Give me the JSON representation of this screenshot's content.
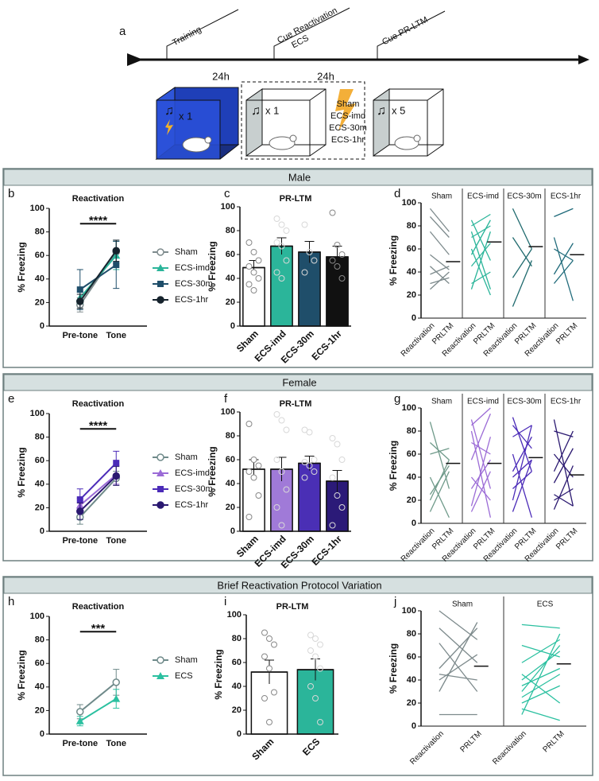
{
  "timeline": {
    "label": "a",
    "events": [
      [
        "Training"
      ],
      [
        "Cue Reactivation",
        "ECS"
      ],
      [
        "Cue PR-LTM"
      ]
    ],
    "intervals": [
      "24h",
      "24h"
    ],
    "cages": [
      {
        "count": "x 1"
      },
      {
        "count": "x 1",
        "conditions": [
          "Sham",
          "ECS-imd",
          "ECS-30m",
          "ECS-1hr"
        ]
      },
      {
        "count": "x 5"
      }
    ]
  },
  "sections": [
    {
      "title": "Male"
    },
    {
      "title": "Female"
    },
    {
      "title": "Brief Reactivation Protocol Variation"
    }
  ],
  "chart_data": [
    {
      "type": "line",
      "label": "b",
      "title": "Reactivation",
      "ylabel": "% Freezing",
      "categories": [
        "Pre-tone",
        "Tone"
      ],
      "ylim": [
        0,
        100
      ],
      "yticks": [
        0,
        20,
        40,
        60,
        80,
        100
      ],
      "annotation": "****",
      "series": [
        {
          "name": "Sham",
          "color": "#7d8a8c",
          "marker": "circle-open",
          "values": [
            18,
            63
          ],
          "errors": [
            6,
            10
          ]
        },
        {
          "name": "ECS-imd",
          "color": "#2bb59a",
          "marker": "triangle",
          "values": [
            24,
            60
          ],
          "errors": [
            5,
            12
          ]
        },
        {
          "name": "ECS-30m",
          "color": "#1f4e6a",
          "marker": "square",
          "values": [
            31,
            52
          ],
          "errors": [
            17,
            20
          ]
        },
        {
          "name": "ECS-1hr",
          "color": "#16232d",
          "marker": "circle",
          "values": [
            21,
            64
          ],
          "errors": [
            6,
            9
          ]
        }
      ]
    },
    {
      "type": "bar",
      "label": "c",
      "title": "PR-LTM",
      "ylabel": "% Freezing",
      "categories": [
        "Sham",
        "ECS-imd",
        "ECS-30m",
        "ECS-1hr"
      ],
      "colors": [
        "#ffffff",
        "#2bb59a",
        "#1f4e6a",
        "#111111"
      ],
      "values": [
        49,
        67,
        62,
        58
      ],
      "errors": [
        6,
        7,
        9,
        9
      ],
      "ylim": [
        0,
        100
      ],
      "yticks": [
        0,
        20,
        40,
        60,
        80,
        100
      ],
      "points": [
        [
          70,
          62,
          55,
          50,
          45,
          40,
          35,
          30
        ],
        [
          90,
          85,
          80,
          70,
          67,
          55,
          45,
          40
        ],
        [
          85,
          62,
          55,
          45
        ],
        [
          95,
          68,
          60,
          55,
          50,
          40
        ]
      ]
    },
    {
      "type": "paired",
      "label": "d",
      "ylabel": "% Freezing",
      "categories": [
        "Reactivation",
        "PRLTM"
      ],
      "ylim": [
        0,
        100
      ],
      "yticks": [
        0,
        20,
        40,
        60,
        80,
        100
      ],
      "groups": [
        {
          "name": "Sham",
          "color": "#7d8a8c",
          "mean": 49,
          "pairs": [
            [
              95,
              75
            ],
            [
              88,
              70
            ],
            [
              75,
              55
            ],
            [
              55,
              42
            ],
            [
              45,
              30
            ],
            [
              38,
              45
            ],
            [
              30,
              35
            ],
            [
              25,
              40
            ]
          ]
        },
        {
          "name": "ECS-imd",
          "color": "#2bb59a",
          "mean": 66,
          "pairs": [
            [
              85,
              50
            ],
            [
              80,
              90
            ],
            [
              75,
              25
            ],
            [
              70,
              80
            ],
            [
              60,
              20
            ],
            [
              55,
              85
            ],
            [
              45,
              65
            ],
            [
              30,
              40
            ],
            [
              25,
              75
            ]
          ]
        },
        {
          "name": "ECS-30m",
          "color": "#1f6a6e",
          "mean": 62,
          "pairs": [
            [
              95,
              60
            ],
            [
              70,
              45
            ],
            [
              35,
              60
            ],
            [
              10,
              50
            ]
          ]
        },
        {
          "name": "ECS-1hr",
          "color": "#1f6a7a",
          "mean": 55,
          "pairs": [
            [
              88,
              95
            ],
            [
              70,
              15
            ],
            [
              60,
              50
            ],
            [
              38,
              65
            ],
            [
              30,
              50
            ]
          ]
        }
      ]
    },
    {
      "type": "line",
      "label": "e",
      "title": "Reactivation",
      "ylabel": "% Freezing",
      "categories": [
        "Pre-tone",
        "Tone"
      ],
      "ylim": [
        0,
        100
      ],
      "yticks": [
        0,
        20,
        40,
        60,
        80,
        100
      ],
      "annotation": "****",
      "series": [
        {
          "name": "Sham",
          "color": "#6f8a8a",
          "marker": "circle-open",
          "values": [
            12,
            45
          ],
          "errors": [
            6,
            6
          ]
        },
        {
          "name": "ECS-imd",
          "color": "#9b6bd6",
          "marker": "triangle",
          "values": [
            22,
            48
          ],
          "errors": [
            6,
            8
          ]
        },
        {
          "name": "ECS-30m",
          "color": "#4b2bb8",
          "marker": "square",
          "values": [
            27,
            58
          ],
          "errors": [
            9,
            10
          ]
        },
        {
          "name": "ECS-1hr",
          "color": "#2a1870",
          "marker": "circle",
          "values": [
            17,
            47
          ],
          "errors": [
            7,
            8
          ]
        }
      ]
    },
    {
      "type": "bar",
      "label": "f",
      "title": "PR-LTM",
      "ylabel": "% Freezing",
      "categories": [
        "Sham",
        "ECS-imd",
        "ECS-30m",
        "ECS-1hr"
      ],
      "colors": [
        "#ffffff",
        "#a07ad8",
        "#4a2fb5",
        "#2b1a78"
      ],
      "values": [
        52,
        52,
        57,
        42
      ],
      "errors": [
        8,
        10,
        6,
        9
      ],
      "ylim": [
        0,
        100
      ],
      "yticks": [
        0,
        20,
        40,
        60,
        80,
        100
      ],
      "points": [
        [
          90,
          60,
          55,
          50,
          45,
          30,
          12
        ],
        [
          98,
          93,
          85,
          60,
          50,
          35,
          20,
          5
        ],
        [
          85,
          83,
          60,
          58,
          55,
          50,
          45
        ],
        [
          78,
          73,
          60,
          45,
          30,
          20,
          5
        ]
      ]
    },
    {
      "type": "paired",
      "label": "g",
      "ylabel": "% Freezing",
      "categories": [
        "Reactivation",
        "PRLTM"
      ],
      "ylim": [
        0,
        100
      ],
      "yticks": [
        0,
        20,
        40,
        60,
        80,
        100
      ],
      "groups": [
        {
          "name": "Sham",
          "color": "#6f9a8a",
          "mean": 52,
          "pairs": [
            [
              88,
              30
            ],
            [
              70,
              55
            ],
            [
              60,
              65
            ],
            [
              40,
              5
            ],
            [
              25,
              50
            ],
            [
              20,
              55
            ],
            [
              10,
              45
            ]
          ]
        },
        {
          "name": "ECS-imd",
          "color": "#9b6bd6",
          "mean": 52,
          "pairs": [
            [
              90,
              30
            ],
            [
              85,
              100
            ],
            [
              80,
              5
            ],
            [
              70,
              60
            ],
            [
              55,
              95
            ],
            [
              40,
              20
            ],
            [
              30,
              55
            ],
            [
              15,
              75
            ],
            [
              10,
              45
            ]
          ]
        },
        {
          "name": "ECS-30m",
          "color": "#4b2bb8",
          "mean": 57,
          "pairs": [
            [
              92,
              45
            ],
            [
              85,
              65
            ],
            [
              75,
              85
            ],
            [
              60,
              5
            ],
            [
              45,
              75
            ],
            [
              40,
              55
            ],
            [
              30,
              45
            ],
            [
              20,
              85
            ],
            [
              10,
              55
            ]
          ]
        },
        {
          "name": "ECS-1hr",
          "color": "#2a1870",
          "mean": 42,
          "pairs": [
            [
              90,
              15
            ],
            [
              80,
              75
            ],
            [
              60,
              40
            ],
            [
              45,
              80
            ],
            [
              35,
              65
            ],
            [
              25,
              15
            ],
            [
              20,
              30
            ],
            [
              12,
              50
            ]
          ]
        }
      ]
    },
    {
      "type": "line",
      "label": "h",
      "title": "Reactivation",
      "ylabel": "% Freezing",
      "categories": [
        "Pre-tone",
        "Tone"
      ],
      "ylim": [
        0,
        100
      ],
      "yticks": [
        0,
        20,
        40,
        60,
        80,
        100
      ],
      "annotation": "***",
      "series": [
        {
          "name": "Sham",
          "color": "#6f8a8a",
          "marker": "circle-open",
          "values": [
            19,
            44
          ],
          "errors": [
            6,
            11
          ]
        },
        {
          "name": "ECS",
          "color": "#2bc0a0",
          "marker": "triangle",
          "values": [
            11,
            30
          ],
          "errors": [
            4,
            8
          ]
        }
      ]
    },
    {
      "type": "bar",
      "label": "i",
      "title": "PR-LTM",
      "ylabel": "% Freezing",
      "categories": [
        "Sham",
        "ECS"
      ],
      "colors": [
        "#ffffff",
        "#2bb59a"
      ],
      "values": [
        52,
        54
      ],
      "errors": [
        10,
        9
      ],
      "ylim": [
        0,
        100
      ],
      "yticks": [
        0,
        20,
        40,
        60,
        80,
        100
      ],
      "points": [
        [
          85,
          80,
          75,
          65,
          55,
          35,
          30,
          10
        ],
        [
          83,
          80,
          75,
          70,
          65,
          55,
          40,
          30,
          10
        ]
      ]
    },
    {
      "type": "paired",
      "label": "j",
      "ylabel": "% Freezing",
      "categories": [
        "Reactivation",
        "PRLTM"
      ],
      "ylim": [
        0,
        100
      ],
      "yticks": [
        0,
        20,
        40,
        60,
        80,
        100
      ],
      "groups": [
        {
          "name": "Sham",
          "color": "#7d8a8c",
          "mean": 52,
          "pairs": [
            [
              100,
              75
            ],
            [
              85,
              55
            ],
            [
              72,
              30
            ],
            [
              50,
              85
            ],
            [
              45,
              40
            ],
            [
              40,
              62
            ],
            [
              30,
              90
            ],
            [
              10,
              10
            ]
          ]
        },
        {
          "name": "ECS",
          "color": "#2bc0a0",
          "mean": 54,
          "pairs": [
            [
              88,
              85
            ],
            [
              70,
              60
            ],
            [
              55,
              75
            ],
            [
              45,
              20
            ],
            [
              40,
              65
            ],
            [
              35,
              50
            ],
            [
              30,
              70
            ],
            [
              25,
              45
            ],
            [
              20,
              35
            ],
            [
              15,
              5
            ],
            [
              10,
              80
            ]
          ]
        }
      ]
    }
  ]
}
